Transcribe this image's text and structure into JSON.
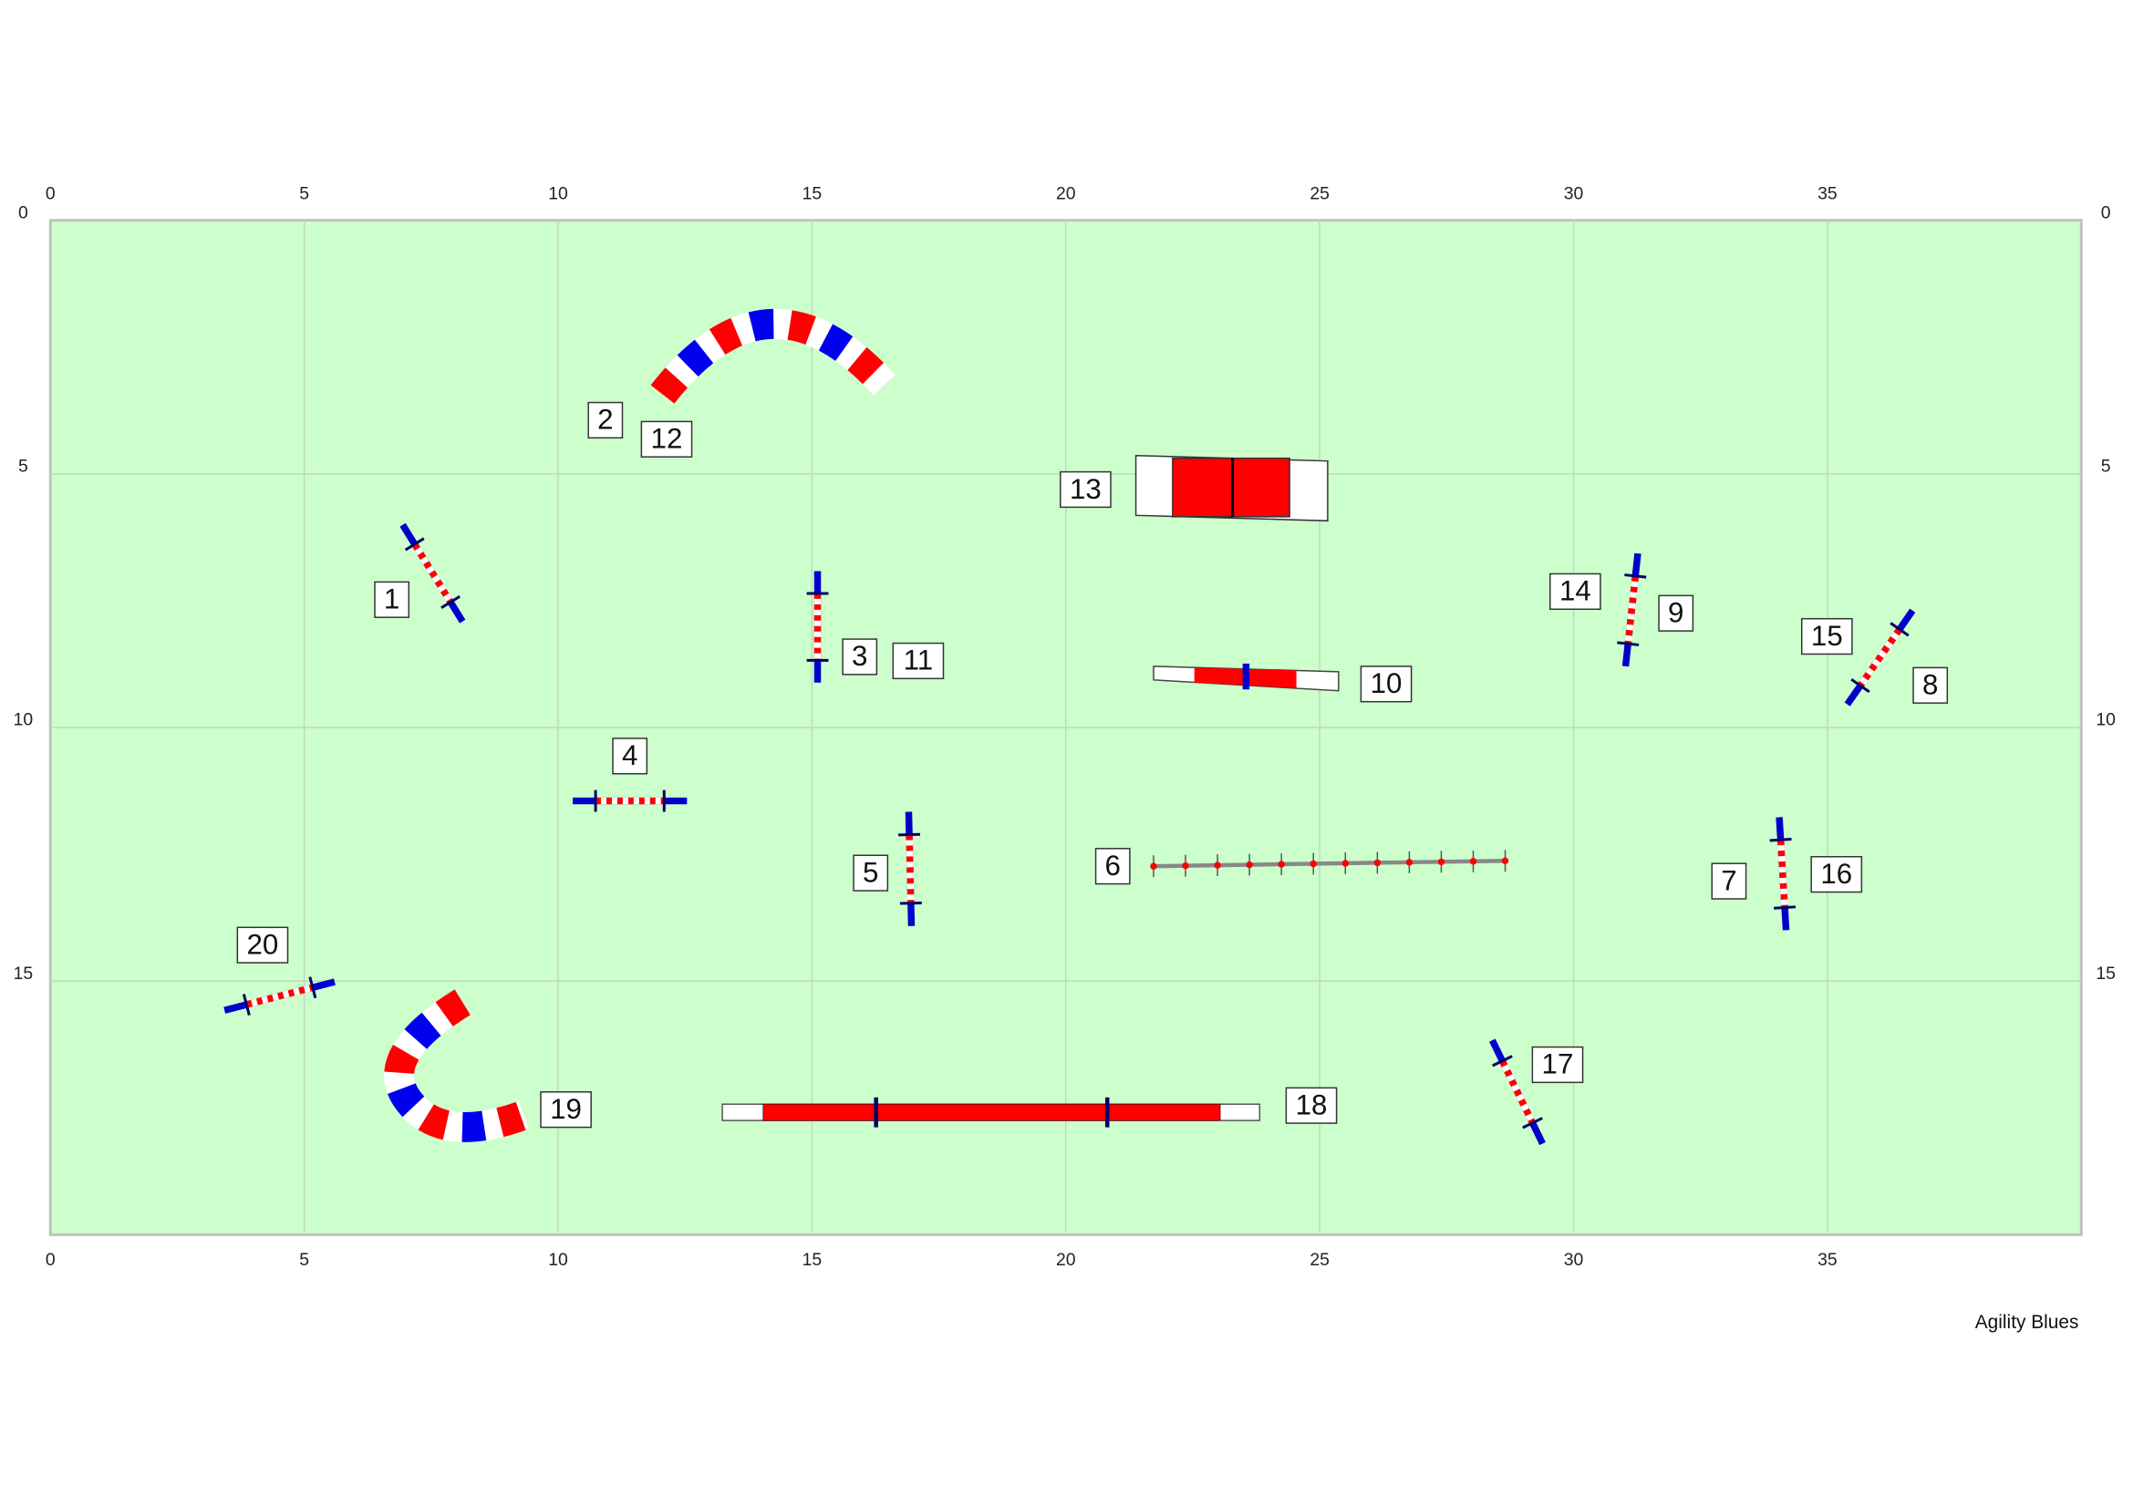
{
  "axis": {
    "xticks": [
      0,
      5,
      10,
      15,
      20,
      25,
      30,
      35
    ],
    "yticks": [
      0,
      5,
      10,
      15
    ]
  },
  "labels": [
    "1",
    "2",
    "3",
    "4",
    "5",
    "6",
    "7",
    "8",
    "9",
    "10",
    "11",
    "12",
    "13",
    "14",
    "15",
    "16",
    "17",
    "18",
    "19",
    "20"
  ],
  "footer": "Agility Blues"
}
